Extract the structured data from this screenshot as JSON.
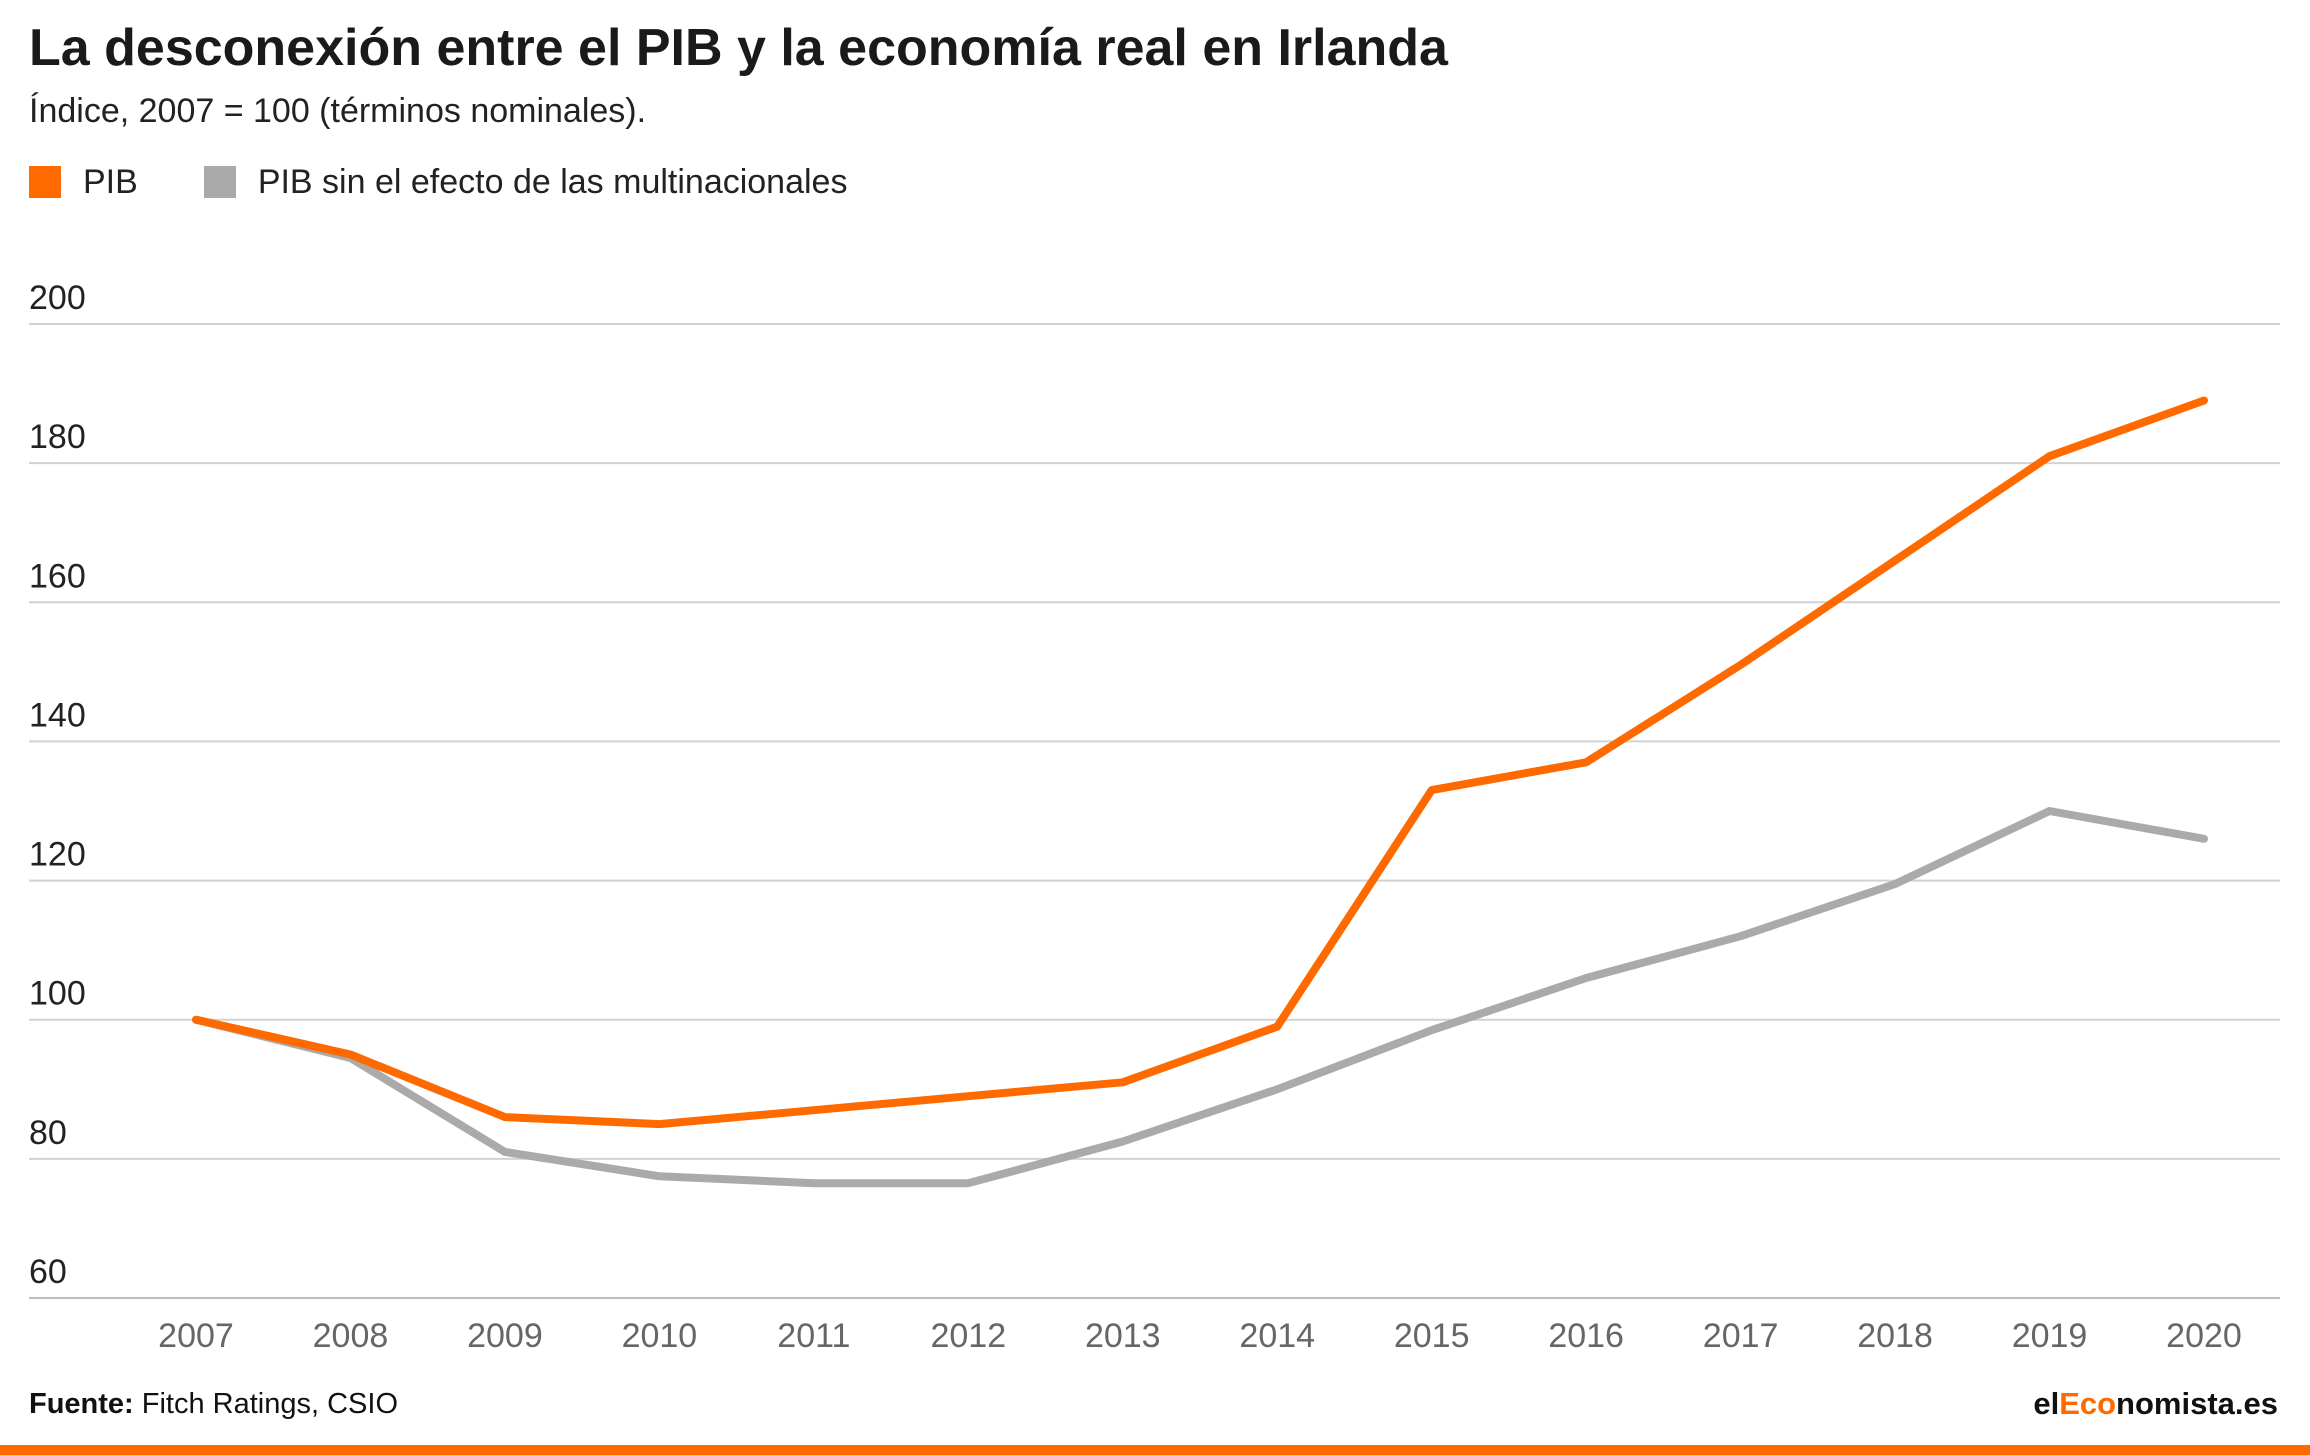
{
  "header": {
    "title": "La desconexión entre el PIB y la economía real en Irlanda",
    "subtitle": "Índice, 2007 = 100 (términos nominales)."
  },
  "legend": [
    {
      "label": "PIB",
      "color": "#ff6a00"
    },
    {
      "label": "PIB sin el efecto de las multinacionales",
      "color": "#aaaaaa"
    }
  ],
  "footer": {
    "source_label": "Fuente:",
    "source_text": " Fitch Ratings, CSIO",
    "brand_pre": "el",
    "brand_accent": "Eco",
    "brand_post": "nomista.es",
    "accent_color": "#ff6a00"
  },
  "chart_data": {
    "type": "line",
    "title": "La desconexión entre el PIB y la economía real en Irlanda",
    "subtitle": "Índice, 2007 = 100 (términos nominales).",
    "xlabel": "",
    "ylabel": "",
    "x": [
      "2007",
      "2008",
      "2009",
      "2010",
      "2011",
      "2012",
      "2013",
      "2014",
      "2015",
      "2016",
      "2017",
      "2018",
      "2019",
      "2020"
    ],
    "ylim": [
      60,
      200
    ],
    "yticks": [
      "60",
      "80",
      "100",
      "120",
      "140",
      "160",
      "180",
      "200"
    ],
    "grid": true,
    "legend_position": "top-left",
    "series": [
      {
        "name": "PIB",
        "color": "#ff6a00",
        "values": [
          100,
          95,
          86,
          85,
          87,
          89,
          91,
          99,
          133,
          137,
          151,
          166,
          181,
          189
        ]
      },
      {
        "name": "PIB sin el efecto de las multinacionales",
        "color": "#aaaaaa",
        "values": [
          100,
          94.5,
          81,
          77.5,
          76.5,
          76.5,
          82.5,
          90,
          98.5,
          106,
          112,
          119.5,
          130,
          126
        ]
      }
    ]
  }
}
